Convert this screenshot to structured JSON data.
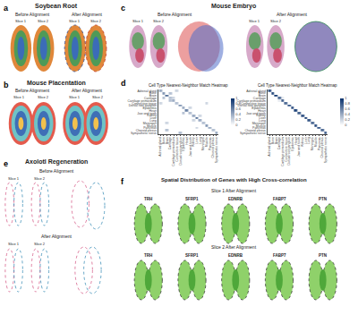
{
  "panels": {
    "a": {
      "label": "a",
      "title": "Soybean Root",
      "before": "Before Alignment",
      "after": "After Alignment",
      "before_slices": [
        "Slice 1",
        "Slice 2"
      ],
      "after_slices": [
        "Slice 1",
        "Slice 2"
      ]
    },
    "b": {
      "label": "b",
      "title": "Mouse Placentation",
      "before": "Before Alignment",
      "after": "After Alignment",
      "before_slices": [
        "Slice 1",
        "Slice 2"
      ],
      "after_slices": [
        "Slice 1",
        "Slice 2"
      ]
    },
    "c": {
      "label": "c",
      "title": "Mouse Embryo",
      "before": "Before Alignment",
      "after": "After Alignment",
      "before_slices": [
        "Slice 1",
        "Slice 2"
      ],
      "after_slices": [
        "Slice 1",
        "Slice 2"
      ]
    },
    "d": {
      "label": "d"
    },
    "e": {
      "label": "e",
      "title": "Axolotl Regeneration",
      "before": "Before Alignment",
      "after": "After Alignment",
      "before_slices": [
        "Slice 1",
        "Slice 2"
      ],
      "after_slices": [
        "Slice 1",
        "Slice 2"
      ]
    },
    "f": {
      "label": "f",
      "title": "Spatial Distribution of Genes with High Cross-correlation",
      "rows": [
        {
          "label": "Slice 1 After Alignment",
          "genes": [
            "TRH",
            "SFRP1",
            "EDNRB",
            "FABP7",
            "PTN"
          ]
        },
        {
          "label": "Slice 2 After Alignment",
          "genes": [
            "TRH",
            "SFRP1",
            "EDNRB",
            "FABP7",
            "PTN"
          ]
        }
      ]
    }
  },
  "chart_data": [
    {
      "type": "heatmap",
      "title": "Cell Type Nearest-Neighbor Match Heatmap",
      "categories": [
        "Adrenal gland",
        "Bone",
        "Brain",
        "Cartilage",
        "Cartilage primordium",
        "Connective tissue",
        "Dorsal root ganglion",
        "Epidermis",
        "Heart",
        "Jaw and tooth",
        "Kidney",
        "Liver",
        "Lung",
        "Meninges",
        "Muscle",
        "Pancreas",
        "Choroid plexus",
        "Sympathetic nerve"
      ],
      "cells": [
        [
          0.4,
          0,
          0,
          0,
          0,
          0.2,
          0,
          0,
          0,
          0,
          0,
          0,
          0,
          0,
          0,
          0,
          0,
          0
        ],
        [
          0,
          0.5,
          0,
          0.3,
          0,
          0,
          0,
          0,
          0,
          0,
          0,
          0,
          0,
          0,
          0,
          0,
          0,
          0
        ],
        [
          0,
          0,
          0.7,
          0,
          0,
          0,
          0,
          0,
          0,
          0,
          0,
          0,
          0,
          0,
          0,
          0,
          0,
          0
        ],
        [
          0,
          0.3,
          0,
          0.3,
          0.2,
          0,
          0,
          0,
          0,
          0,
          0,
          0,
          0,
          0,
          0,
          0,
          0,
          0
        ],
        [
          0,
          0,
          0,
          0.3,
          0.4,
          0,
          0,
          0,
          0,
          0,
          0,
          0,
          0,
          0,
          0,
          0,
          0,
          0
        ],
        [
          0.2,
          0,
          0,
          0,
          0,
          0.3,
          0,
          0,
          0,
          0,
          0,
          0,
          0,
          0,
          0.2,
          0,
          0,
          0
        ],
        [
          0,
          0,
          0,
          0,
          0,
          0,
          0.5,
          0,
          0,
          0,
          0,
          0,
          0,
          0,
          0,
          0,
          0,
          0
        ],
        [
          0,
          0,
          0,
          0,
          0,
          0,
          0,
          0.4,
          0,
          0.2,
          0,
          0,
          0,
          0,
          0,
          0,
          0,
          0
        ],
        [
          0,
          0,
          0,
          0,
          0,
          0,
          0,
          0,
          0.6,
          0,
          0,
          0,
          0,
          0,
          0,
          0,
          0,
          0
        ],
        [
          0,
          0,
          0,
          0,
          0,
          0,
          0,
          0.3,
          0,
          0.3,
          0,
          0,
          0,
          0,
          0,
          0,
          0,
          0
        ],
        [
          0,
          0,
          0,
          0,
          0,
          0,
          0,
          0,
          0,
          0,
          0.4,
          0,
          0.2,
          0,
          0,
          0,
          0,
          0
        ],
        [
          0,
          0,
          0,
          0,
          0,
          0,
          0,
          0,
          0,
          0,
          0,
          0.7,
          0,
          0,
          0,
          0,
          0,
          0
        ],
        [
          0,
          0,
          0,
          0,
          0,
          0,
          0,
          0,
          0,
          0,
          0.2,
          0,
          0.4,
          0,
          0,
          0,
          0,
          0
        ],
        [
          0,
          0,
          0.2,
          0,
          0,
          0,
          0,
          0,
          0,
          0,
          0,
          0,
          0,
          0.3,
          0,
          0,
          0,
          0
        ],
        [
          0,
          0,
          0,
          0,
          0,
          0,
          0,
          0,
          0,
          0,
          0,
          0,
          0,
          0,
          0.5,
          0,
          0,
          0
        ],
        [
          0,
          0,
          0,
          0,
          0,
          0,
          0,
          0,
          0,
          0,
          0,
          0.2,
          0,
          0,
          0,
          0.4,
          0,
          0
        ],
        [
          0,
          0,
          0.3,
          0,
          0,
          0,
          0,
          0,
          0,
          0,
          0,
          0,
          0,
          0,
          0,
          0,
          0.3,
          0
        ],
        [
          0,
          0,
          0,
          0,
          0,
          0,
          0.3,
          0,
          0,
          0,
          0,
          0,
          0,
          0,
          0,
          0,
          0,
          0.4
        ]
      ],
      "colorbar": {
        "range": [
          0,
          1
        ],
        "ticks": [
          0,
          0.2,
          0.4,
          0.6,
          0.8,
          1
        ]
      }
    },
    {
      "type": "heatmap",
      "title": "Cell Type Nearest-Neighbor Match Heatmap",
      "categories": [
        "Adrenal gland",
        "Bone",
        "Brain",
        "Cartilage",
        "Cartilage primordium",
        "Connective tissue",
        "Dorsal root ganglion",
        "Epidermis",
        "Heart",
        "Jaw and tooth",
        "Kidney",
        "Liver",
        "Lung",
        "Meninges",
        "Muscle",
        "Pancreas",
        "Choroid plexus",
        "Sympathetic nerve"
      ],
      "cells": [
        [
          0.8,
          0,
          0,
          0,
          0,
          0,
          0,
          0,
          0,
          0,
          0,
          0,
          0,
          0,
          0,
          0,
          0,
          0
        ],
        [
          0,
          0.85,
          0,
          0,
          0,
          0,
          0,
          0,
          0,
          0,
          0,
          0,
          0,
          0,
          0,
          0,
          0,
          0
        ],
        [
          0,
          0,
          0.95,
          0,
          0,
          0,
          0,
          0,
          0,
          0,
          0,
          0,
          0,
          0,
          0,
          0,
          0,
          0
        ],
        [
          0,
          0,
          0,
          0.7,
          0.1,
          0,
          0,
          0,
          0,
          0,
          0,
          0,
          0,
          0,
          0,
          0,
          0,
          0
        ],
        [
          0,
          0,
          0,
          0.1,
          0.75,
          0,
          0,
          0,
          0,
          0,
          0,
          0,
          0,
          0,
          0,
          0,
          0,
          0
        ],
        [
          0,
          0,
          0,
          0,
          0,
          0.7,
          0,
          0,
          0,
          0,
          0,
          0,
          0,
          0,
          0,
          0,
          0,
          0
        ],
        [
          0,
          0,
          0,
          0,
          0,
          0,
          0.8,
          0,
          0,
          0,
          0,
          0,
          0,
          0,
          0,
          0,
          0,
          0
        ],
        [
          0,
          0,
          0,
          0,
          0,
          0,
          0,
          0.8,
          0,
          0,
          0,
          0,
          0,
          0,
          0,
          0,
          0,
          0
        ],
        [
          0,
          0,
          0,
          0,
          0,
          0,
          0,
          0,
          0.9,
          0,
          0,
          0,
          0,
          0,
          0,
          0,
          0,
          0
        ],
        [
          0,
          0,
          0,
          0,
          0,
          0,
          0,
          0,
          0,
          0.75,
          0,
          0,
          0,
          0,
          0,
          0,
          0,
          0
        ],
        [
          0,
          0,
          0,
          0,
          0,
          0,
          0,
          0,
          0,
          0,
          0.8,
          0,
          0,
          0,
          0,
          0,
          0,
          0
        ],
        [
          0,
          0,
          0,
          0,
          0,
          0,
          0,
          0,
          0,
          0,
          0,
          0.95,
          0,
          0,
          0,
          0,
          0,
          0
        ],
        [
          0,
          0,
          0,
          0,
          0,
          0,
          0,
          0,
          0,
          0,
          0,
          0,
          0.8,
          0,
          0,
          0,
          0,
          0
        ],
        [
          0,
          0,
          0,
          0,
          0,
          0,
          0,
          0,
          0,
          0,
          0,
          0,
          0,
          0.7,
          0,
          0,
          0,
          0
        ],
        [
          0,
          0,
          0,
          0,
          0,
          0,
          0,
          0,
          0,
          0,
          0,
          0,
          0,
          0,
          0.85,
          0,
          0,
          0
        ],
        [
          0,
          0,
          0,
          0,
          0,
          0,
          0,
          0,
          0,
          0,
          0,
          0,
          0,
          0,
          0,
          0.8,
          0,
          0
        ],
        [
          0,
          0,
          0,
          0,
          0,
          0,
          0,
          0,
          0,
          0,
          0,
          0,
          0,
          0,
          0,
          0,
          0.7,
          0
        ],
        [
          0,
          0,
          0,
          0,
          0,
          0,
          0,
          0,
          0,
          0,
          0,
          0,
          0,
          0,
          0,
          0,
          0,
          0.75
        ]
      ],
      "colorbar": {
        "range": [
          0,
          1
        ],
        "ticks": [
          0,
          0.2,
          0.4,
          0.6,
          0.8,
          1
        ]
      }
    }
  ]
}
